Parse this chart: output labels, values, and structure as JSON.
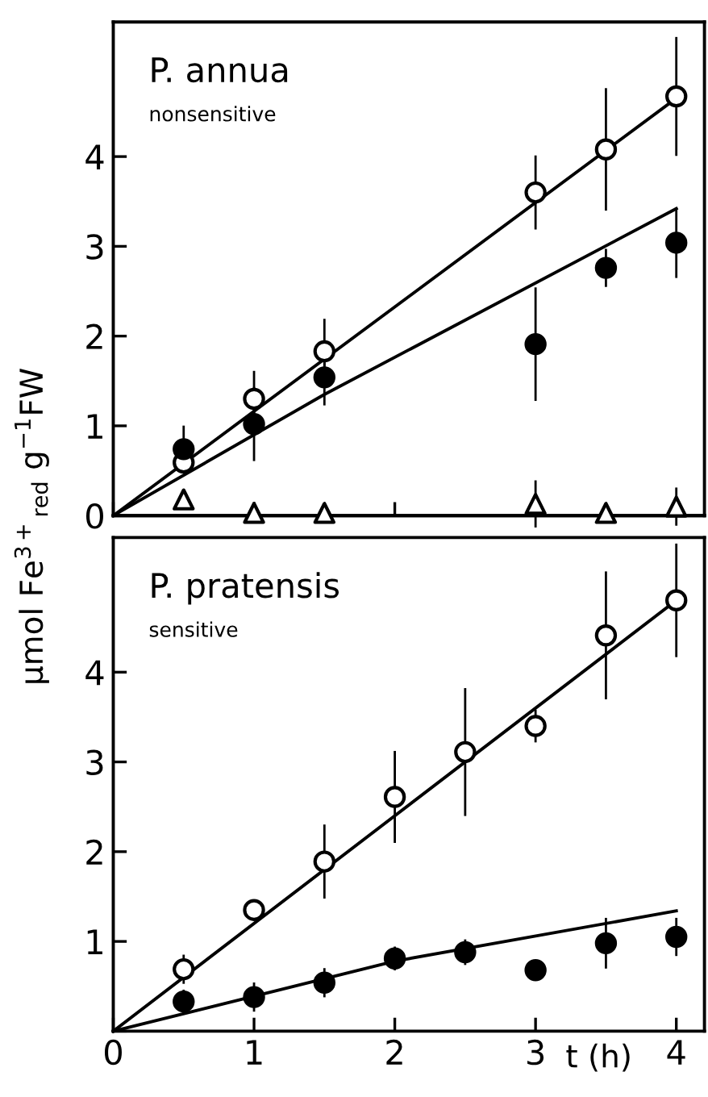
{
  "chart_data": [
    {
      "type": "scatter",
      "ylabel": "μmol Fe$^{3+}$$_{red}$ g$^{−1}$FW",
      "annotations": [
        "P. annua",
        "nonsensitive"
      ],
      "xlim": [
        0,
        4.2
      ],
      "ylim": [
        0,
        5.5
      ],
      "xticks": [
        {
          "value": 0,
          "label": null
        },
        {
          "value": 1,
          "label": null
        },
        {
          "value": 2,
          "label": null
        },
        {
          "value": 3,
          "label": null
        },
        {
          "value": 4,
          "label": null
        }
      ],
      "yticks": [
        0,
        1,
        2,
        3,
        4
      ],
      "tick_labels": "y",
      "grid": false,
      "legend": false,
      "series": [
        {
          "type": "line",
          "color": "#000000",
          "x": [
            0,
            4
          ],
          "values": [
            0,
            4.65
          ]
        },
        {
          "type": "line",
          "color": "#000000",
          "x": [
            0,
            1.5,
            4
          ],
          "values": [
            0,
            1.35,
            3.42
          ]
        },
        {
          "type": "line",
          "color": "#000000",
          "x": [
            0,
            4.2
          ],
          "values": [
            0,
            0
          ]
        },
        {
          "color": "#ffffff",
          "marker": "circle",
          "x": [
            0.5,
            1,
            1.5,
            3,
            3.5,
            4
          ],
          "values": [
            0.59,
            1.3,
            1.83,
            3.6,
            4.08,
            4.67
          ],
          "errors": [
            null,
            0.3,
            0.35,
            0.4,
            0.67,
            0.65
          ]
        },
        {
          "color": "#000000",
          "marker": "circle",
          "x": [
            0.5,
            1,
            1.5,
            3,
            3.5,
            4
          ],
          "values": [
            0.74,
            1.02,
            1.54,
            1.91,
            2.76,
            3.04
          ],
          "errors": [
            0.25,
            0.4,
            0.3,
            0.62,
            0.2,
            0.38
          ]
        },
        {
          "color": "#ffffff",
          "marker": "triangle",
          "x": [
            0.5,
            1,
            1.5,
            3,
            3.5,
            4
          ],
          "values": [
            0.18,
            0.03,
            0.03,
            0.13,
            0.03,
            0.1
          ],
          "errors": [
            null,
            null,
            null,
            0.25,
            null,
            0.2
          ]
        }
      ]
    },
    {
      "type": "scatter",
      "xlabel": "t (h)",
      "annotations": [
        "P. pratensis",
        "sensitive"
      ],
      "xlim": [
        0,
        4.2
      ],
      "ylim": [
        0,
        5.5
      ],
      "xticks": [
        0,
        1,
        2,
        3,
        4
      ],
      "yticks": [
        {
          "value": 0,
          "label": null
        },
        1,
        2,
        3,
        4
      ],
      "grid": false,
      "legend": false,
      "series": [
        {
          "type": "line",
          "color": "#000000",
          "x": [
            0,
            4
          ],
          "values": [
            0,
            4.8
          ]
        },
        {
          "type": "line",
          "color": "#000000",
          "x": [
            0,
            2,
            4
          ],
          "values": [
            0,
            0.78,
            1.34
          ]
        },
        {
          "color": "#ffffff",
          "marker": "circle",
          "x": [
            0.5,
            1,
            1.5,
            2,
            2.5,
            3,
            3.5,
            4
          ],
          "values": [
            0.69,
            1.35,
            1.89,
            2.61,
            3.11,
            3.4,
            4.41,
            4.8
          ],
          "errors": [
            0.15,
            null,
            0.4,
            0.5,
            0.7,
            0.17,
            0.7,
            0.62
          ]
        },
        {
          "color": "#000000",
          "marker": "circle",
          "x": [
            0.5,
            1,
            1.5,
            2,
            2.5,
            3,
            3.5,
            4
          ],
          "values": [
            0.33,
            0.38,
            0.54,
            0.81,
            0.88,
            0.68,
            0.98,
            1.05
          ],
          "errors": [
            0.12,
            0.15,
            0.15,
            0.12,
            0.13,
            null,
            0.27,
            0.2
          ]
        }
      ]
    }
  ]
}
